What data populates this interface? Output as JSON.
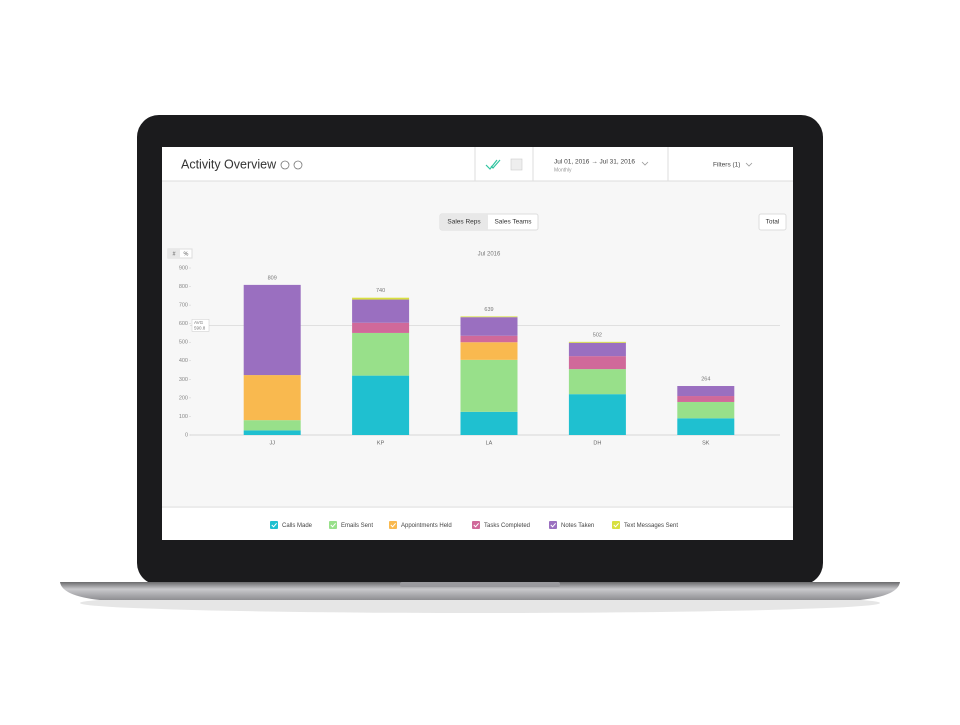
{
  "header": {
    "title": "Activity Overview",
    "date_range": "Jul 01, 2016 → Jul 31, 2016",
    "period": "Monthly",
    "filters": "Filters (1)"
  },
  "controls": {
    "modes": [
      "Sales Reps",
      "Sales Teams"
    ],
    "total": "Total",
    "units": [
      "#",
      "%"
    ]
  },
  "chart_data": {
    "type": "stacked_bar",
    "subtitle": "Jul 2016",
    "categories": [
      "JJ",
      "KP",
      "LA",
      "DH",
      "SK"
    ],
    "series": [
      {
        "name": "Calls Made",
        "color": "#1fc0d0",
        "values": [
          25,
          320,
          125,
          220,
          90
        ]
      },
      {
        "name": "Emails Sent",
        "color": "#98e08a",
        "values": [
          55,
          230,
          280,
          135,
          88
        ]
      },
      {
        "name": "Appointments Held",
        "color": "#f9b94f",
        "values": [
          243,
          0,
          95,
          0,
          0
        ]
      },
      {
        "name": "Tasks Completed",
        "color": "#d0699a",
        "values": [
          0,
          55,
          35,
          70,
          32
        ]
      },
      {
        "name": "Notes Taken",
        "color": "#9a6fc0",
        "values": [
          486,
          125,
          100,
          72,
          54
        ]
      },
      {
        "name": "Text Messages Sent",
        "color": "#d8e040",
        "values": [
          0,
          10,
          4,
          5,
          0
        ]
      }
    ],
    "totals": [
      809,
      740,
      639,
      502,
      264
    ],
    "average": {
      "label": "AVG",
      "value": 590.8
    },
    "ylim": [
      0,
      900
    ],
    "yticks": [
      0,
      100,
      200,
      300,
      400,
      500,
      600,
      700,
      800,
      900
    ],
    "grid": false
  }
}
